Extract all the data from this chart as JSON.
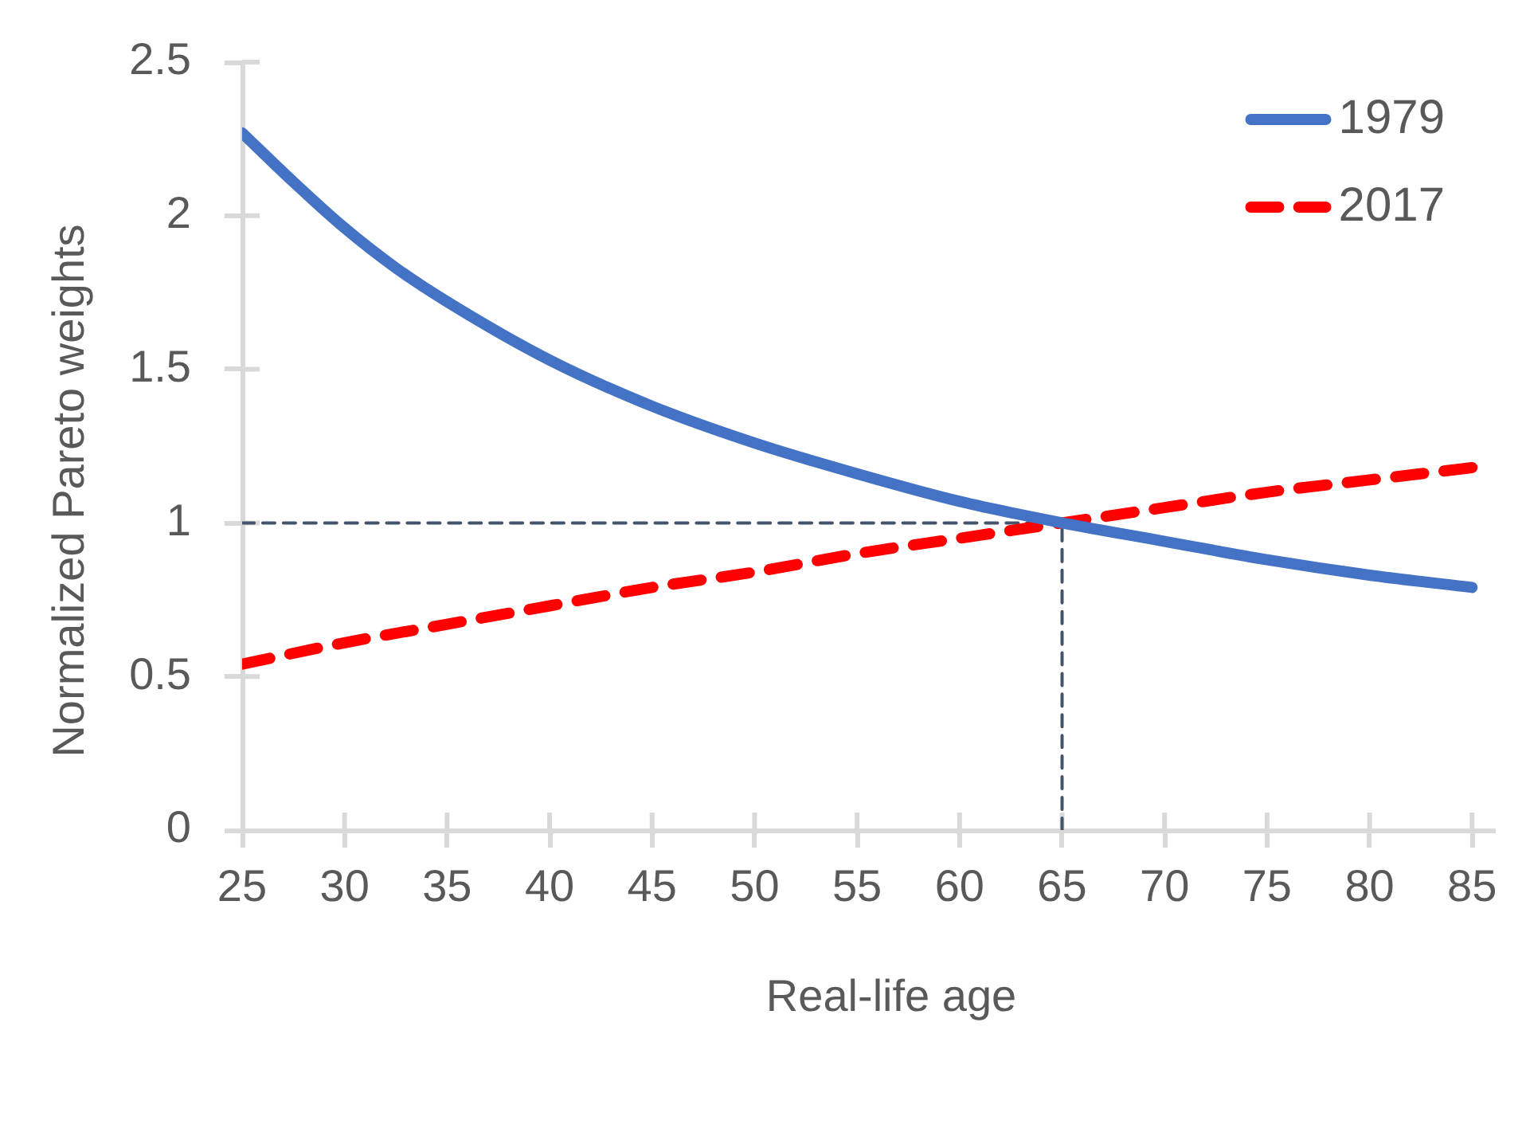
{
  "chart_data": {
    "type": "line",
    "xlabel": "Real-life age",
    "ylabel": "Normalized Pareto weights",
    "x": [
      25,
      30,
      35,
      40,
      45,
      50,
      55,
      60,
      65,
      70,
      75,
      80,
      85
    ],
    "series": [
      {
        "name": "1979",
        "color": "#4472c4",
        "line_style": "solid",
        "x": [
          25,
          27.5,
          30,
          32.5,
          35,
          40,
          45,
          50,
          55,
          60,
          65,
          70,
          75,
          80,
          85
        ],
        "values": [
          2.27,
          2.11,
          1.96,
          1.83,
          1.72,
          1.53,
          1.38,
          1.26,
          1.16,
          1.07,
          1.0,
          0.94,
          0.88,
          0.83,
          0.79
        ]
      },
      {
        "name": "2017",
        "color": "#ff0000",
        "line_style": "dashed",
        "values": [
          0.54,
          0.61,
          0.67,
          0.73,
          0.79,
          0.84,
          0.9,
          0.95,
          1.0,
          1.05,
          1.1,
          1.14,
          1.18
        ]
      },
      {
        "color": "#44546a",
        "line_style": "dashed",
        "x": [
          25,
          65,
          65
        ],
        "values": [
          1,
          1,
          0
        ]
      }
    ],
    "xlim": [
      25,
      86
    ],
    "xticks": [
      25,
      30,
      35,
      40,
      45,
      50,
      55,
      60,
      65,
      70,
      75,
      80,
      85
    ],
    "ylim": [
      0,
      2.5
    ],
    "yticks": [
      0,
      0.5,
      1,
      1.5,
      2,
      2.5
    ],
    "grid": false,
    "legend": "top right",
    "marker": "none"
  }
}
